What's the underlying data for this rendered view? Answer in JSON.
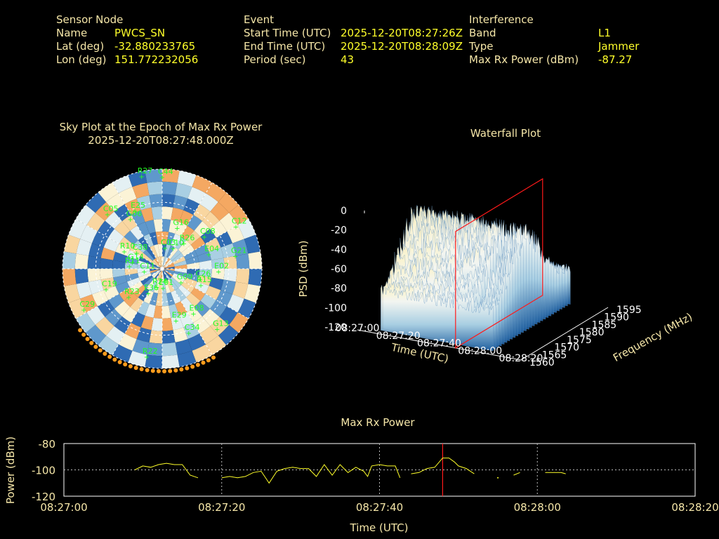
{
  "header": {
    "sensor": {
      "title": "Sensor Node",
      "name_label": "Name",
      "name_value": "PWCS_SN",
      "lat_label": "Lat (deg)",
      "lat_value": "-32.880233765",
      "lon_label": "Lon (deg)",
      "lon_value": "151.772232056"
    },
    "event": {
      "title": "Event",
      "start_label": "Start Time (UTC)",
      "start_value": "2025-12-20T08:27:26Z",
      "end_label": "End Time (UTC)",
      "end_value": "2025-12-20T08:28:09Z",
      "period_label": "Period (sec)",
      "period_value": "43"
    },
    "interference": {
      "title": "Interference",
      "band_label": "Band",
      "band_value": "L1",
      "type_label": "Type",
      "type_value": "Jammer",
      "maxrx_label": "Max Rx Power (dBm)",
      "maxrx_value": "-87.27"
    }
  },
  "chart_data": [
    {
      "type": "scatter",
      "title": "Sky Plot at the Epoch of Max Rx Power",
      "subtitle": "2025-12-20T08:27:48.000Z",
      "satellites": [
        "C44",
        "G13",
        "R11",
        "C08",
        "R22",
        "G06",
        "C26",
        "C29",
        "G16",
        "C34",
        "R10",
        "E04",
        "E36",
        "R27",
        "G09",
        "C11",
        "R26",
        "E01",
        "C05",
        "E02",
        "R23",
        "C03",
        "E08",
        "G14",
        "C12",
        "R24",
        "E25",
        "R15",
        "C19",
        "C10",
        "E29",
        "C38",
        "G21"
      ],
      "colors": {
        "satellite": "#22ff22",
        "edge_marker": "#ff9c1c",
        "background": "#000000",
        "text": "#f5e6a8"
      }
    },
    {
      "type": "area",
      "title": "Waterfall Plot",
      "zlabel": "PSD (dBm)",
      "xlabel": "Time (UTC)",
      "ylabel": "Frequency (MHz)",
      "z_ticks": [
        "0",
        "-20",
        "-40",
        "-60",
        "-80",
        "-100",
        "-120"
      ],
      "time_ticks": [
        "08:27:00",
        "08:27:20",
        "08:27:40",
        "08:28:00",
        "08:28:20"
      ],
      "freq_ticks": [
        "1560",
        "1565",
        "1570",
        "1575",
        "1580",
        "1585",
        "1590",
        "1595"
      ],
      "zlim": [
        -120,
        0
      ],
      "xlim_s": [
        0,
        80
      ],
      "ylim_mhz": [
        1560,
        1595
      ],
      "marker_time_s": 48,
      "colors": {
        "marker": "#ff1a1a",
        "surface_low": "#1f5fa0",
        "surface_high": "#fff2bf"
      }
    },
    {
      "type": "line",
      "title": "Max Rx Power",
      "xlabel": "Time (UTC)",
      "ylabel": "Power (dBm)",
      "x_ticks": [
        "08:27:00",
        "08:27:20",
        "08:27:40",
        "08:28:00",
        "08:28:20"
      ],
      "y_ticks": [
        "-80",
        "-100",
        "-120"
      ],
      "xlim_s": [
        0,
        80
      ],
      "ylim": [
        -120,
        -80
      ],
      "marker_time_s": 48,
      "grid": true,
      "colors": {
        "line": "#ffff2a",
        "marker": "#ff1a1a",
        "axis": "#ffffff",
        "grid": "#bbbbbb"
      },
      "segments": [
        [
          [
            9,
            -100
          ],
          [
            10,
            -97
          ],
          [
            11,
            -98
          ],
          [
            12,
            -96
          ],
          [
            13,
            -95
          ],
          [
            14,
            -96
          ],
          [
            15,
            -96
          ],
          [
            16,
            -104
          ],
          [
            17,
            -106
          ]
        ],
        [
          [
            20,
            -106
          ],
          [
            21,
            -105
          ],
          [
            22,
            -106
          ],
          [
            23,
            -105
          ],
          [
            24,
            -102
          ],
          [
            25,
            -101
          ],
          [
            26,
            -110
          ],
          [
            27,
            -101
          ],
          [
            28,
            -99
          ],
          [
            29,
            -98
          ],
          [
            30,
            -99
          ],
          [
            31,
            -99
          ],
          [
            32,
            -105
          ],
          [
            33,
            -96
          ],
          [
            34,
            -104
          ],
          [
            35,
            -96
          ],
          [
            36,
            -102
          ],
          [
            37,
            -98
          ],
          [
            38,
            -101
          ],
          [
            38.5,
            -105
          ],
          [
            39,
            -97
          ],
          [
            40,
            -96
          ],
          [
            41,
            -97
          ],
          [
            42,
            -97
          ],
          [
            42.6,
            -106
          ]
        ],
        [
          [
            44,
            -103
          ],
          [
            45,
            -102
          ],
          [
            46,
            -99
          ],
          [
            47,
            -98
          ],
          [
            48,
            -91
          ],
          [
            48.8,
            -91
          ],
          [
            49.5,
            -94
          ],
          [
            50,
            -97
          ],
          [
            51,
            -99
          ],
          [
            52,
            -103
          ]
        ],
        [
          [
            55,
            -106
          ]
        ],
        [
          [
            57,
            -104
          ],
          [
            57.8,
            -102
          ]
        ],
        [
          [
            61,
            -102
          ],
          [
            62,
            -102
          ],
          [
            63,
            -102
          ],
          [
            63.6,
            -103
          ]
        ]
      ]
    }
  ]
}
